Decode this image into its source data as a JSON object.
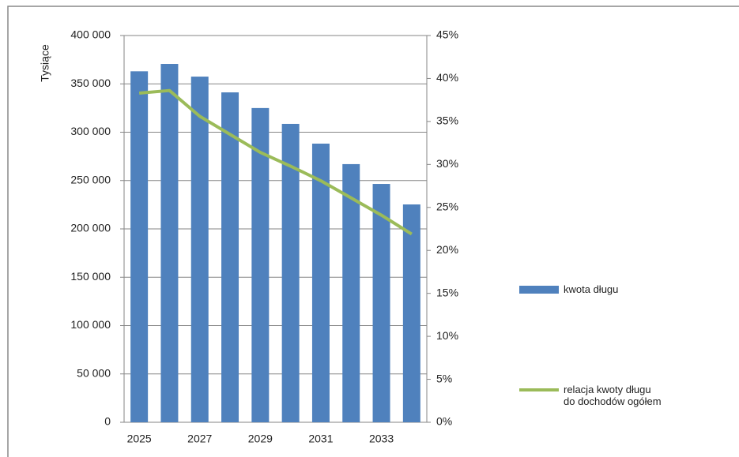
{
  "chart_data": {
    "type": "bar-line",
    "y_label": "Tysiące",
    "categories": [
      "2025",
      null,
      "2027",
      null,
      "2029",
      null,
      "2031",
      null,
      "2033",
      null
    ],
    "series": [
      {
        "name": "kwota długu",
        "type": "bar",
        "color": "#4f81bd",
        "axis": "y",
        "values": [
          363000,
          370600,
          357500,
          341200,
          325000,
          308600,
          288200,
          267000,
          246500,
          225300
        ]
      },
      {
        "name": "relacja kwoty długu do dochodów ogółem",
        "type": "line",
        "color": "#9bbb59",
        "axis": "y2",
        "values": [
          38.3,
          38.6,
          35.6,
          33.5,
          31.4,
          29.8,
          28.1,
          26.1,
          24.1,
          21.9
        ]
      }
    ],
    "ylim": [
      0,
      400000
    ],
    "yticks": [
      {
        "value": 0,
        "label": "0"
      },
      {
        "value": 50000,
        "label": "50 000"
      },
      {
        "value": 100000,
        "label": "100 000"
      },
      {
        "value": 150000,
        "label": "150 000"
      },
      {
        "value": 200000,
        "label": "200 000"
      },
      {
        "value": 250000,
        "label": "250 000"
      },
      {
        "value": 300000,
        "label": "300 000"
      },
      {
        "value": 350000,
        "label": "350 000"
      },
      {
        "value": 400000,
        "label": "400 000"
      }
    ],
    "y2lim": [
      0,
      45
    ],
    "y2ticks": [
      {
        "value": 0,
        "label": "0%"
      },
      {
        "value": 5,
        "label": "5%"
      },
      {
        "value": 10,
        "label": "10%"
      },
      {
        "value": 15,
        "label": "15%"
      },
      {
        "value": 20,
        "label": "20%"
      },
      {
        "value": 25,
        "label": "25%"
      },
      {
        "value": 30,
        "label": "30%"
      },
      {
        "value": 35,
        "label": "35%"
      },
      {
        "value": 40,
        "label": "40%"
      },
      {
        "value": 45,
        "label": "45%"
      }
    ],
    "grid": true
  }
}
